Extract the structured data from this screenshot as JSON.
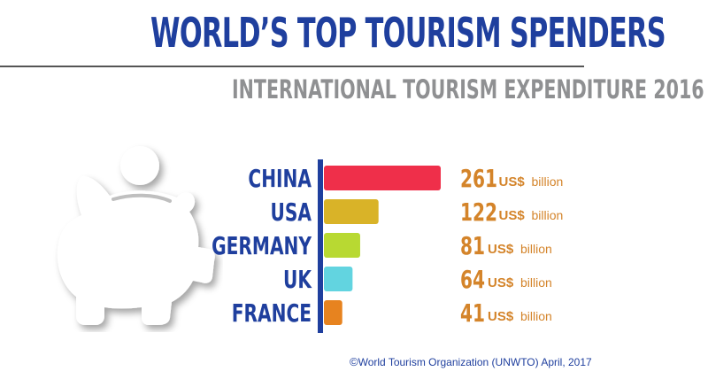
{
  "title": "WORLD’S TOP TOURISM SPENDERS",
  "subtitle": "INTERNATIONAL TOURISM EXPENDITURE 2016",
  "source": "World Tourism Organization (UNWTO) April, 2017",
  "copyright_symbol": "©",
  "unit_label": "US$",
  "unit_suffix": "billion",
  "pig_icon": "piggy-bank-icon",
  "colors": {
    "title": "#1f3f9e",
    "subtitle": "#8f9092",
    "axis": "#1f3f9e",
    "value": "#d4842a",
    "unit": "#d4842a"
  },
  "chart_data": {
    "type": "bar",
    "orientation": "horizontal",
    "categories": [
      "CHINA",
      "USA",
      "GERMANY",
      "UK",
      "FRANCE"
    ],
    "values": [
      261,
      122,
      81,
      64,
      41
    ],
    "bar_colors": [
      "#ef2f4a",
      "#d9b328",
      "#b8d932",
      "#62d4e0",
      "#e7831f"
    ],
    "title": "INTERNATIONAL TOURISM EXPENDITURE 2016",
    "xlabel": "",
    "ylabel": "",
    "xlim": [
      0,
      261
    ],
    "grid": false,
    "legend": "none"
  }
}
